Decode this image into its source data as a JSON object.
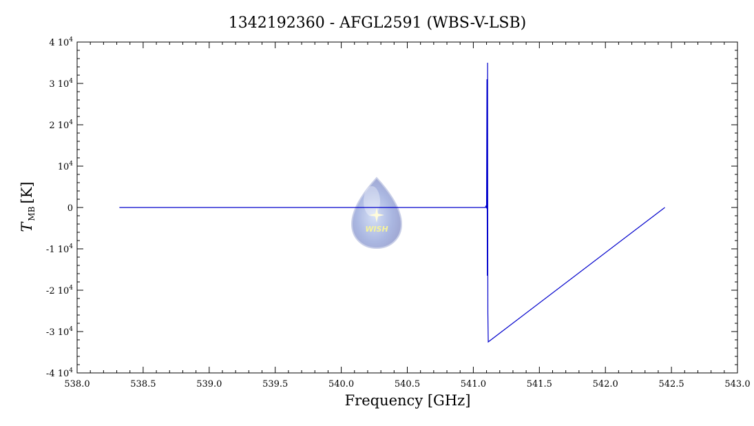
{
  "chart_data": {
    "type": "line",
    "title": "1342192360 - AFGL2591 (WBS-V-LSB)",
    "xlabel": "Frequency [GHz]",
    "ylabel_main": "T",
    "ylabel_sub": "MB",
    "ylabel_unit": "[K]",
    "xlim": [
      538.0,
      543.0
    ],
    "ylim": [
      -40000,
      40000
    ],
    "x_ticks": [
      538.0,
      538.5,
      539.0,
      539.5,
      540.0,
      540.5,
      541.0,
      541.5,
      542.0,
      542.5,
      543.0
    ],
    "x_tick_labels": [
      "538.0",
      "538.5",
      "539.0",
      "539.5",
      "540.0",
      "540.5",
      "541.0",
      "541.5",
      "542.0",
      "542.5",
      "543.0"
    ],
    "y_ticks": [
      {
        "value": 40000,
        "mant": "4 10",
        "exp": "4"
      },
      {
        "value": 30000,
        "mant": "3 10",
        "exp": "4"
      },
      {
        "value": 20000,
        "mant": "2 10",
        "exp": "4"
      },
      {
        "value": 10000,
        "mant": "10",
        "exp": "4"
      },
      {
        "value": 0,
        "mant": "0",
        "exp": ""
      },
      {
        "value": -10000,
        "mant": "-1 10",
        "exp": "4"
      },
      {
        "value": -20000,
        "mant": "-2 10",
        "exp": "4"
      },
      {
        "value": -30000,
        "mant": "-3 10",
        "exp": "4"
      },
      {
        "value": -40000,
        "mant": "-4 10",
        "exp": "4"
      }
    ],
    "grid": false,
    "series": [
      {
        "color": "#0000cc",
        "x": [
          538.32,
          541.09,
          541.095,
          541.1,
          541.103,
          541.106,
          541.108,
          541.11,
          541.113,
          542.45
        ],
        "y": [
          0,
          0,
          300,
          -200,
          31000,
          -16500,
          35000,
          -25500,
          -32500,
          0
        ]
      }
    ],
    "logo": {
      "text": "WISH"
    }
  }
}
